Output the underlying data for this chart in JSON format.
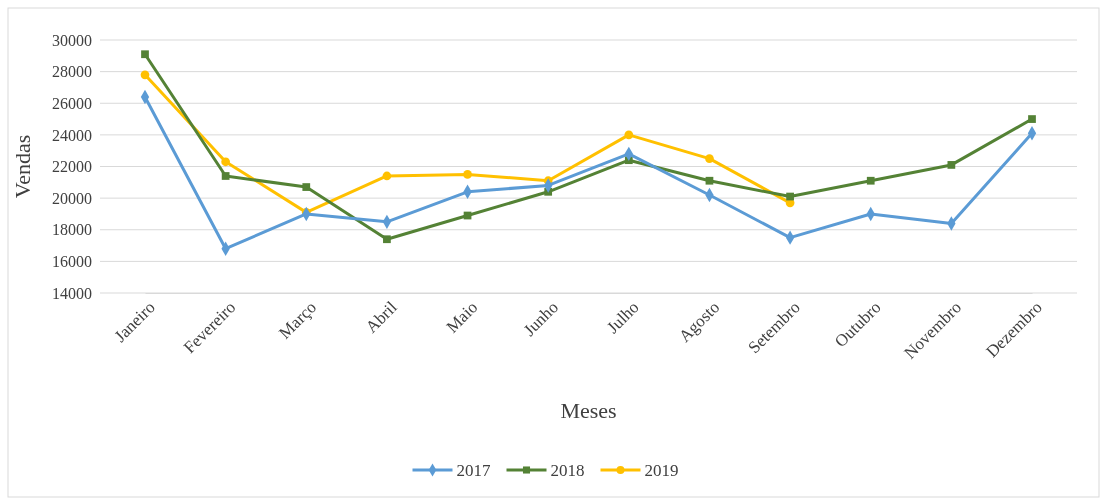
{
  "chart_data": {
    "type": "line",
    "xlabel": "Meses",
    "ylabel": "Vendas",
    "categories": [
      "Janeiro",
      "Fevereiro",
      "Março",
      "Abril",
      "Maio",
      "Junho",
      "Julho",
      "Agosto",
      "Setembro",
      "Outubro",
      "Novembro",
      "Dezembro"
    ],
    "series": [
      {
        "name": "2017",
        "color": "#5b9bd5",
        "marker": "diamond",
        "values": [
          26400,
          16800,
          19000,
          18500,
          20400,
          20800,
          22800,
          20200,
          17500,
          19000,
          18400,
          24100
        ]
      },
      {
        "name": "2018",
        "color": "#548235",
        "marker": "square",
        "values": [
          29100,
          21400,
          20700,
          17400,
          18900,
          20400,
          22400,
          21100,
          20100,
          21100,
          22100,
          25000
        ]
      },
      {
        "name": "2019",
        "color": "#ffc000",
        "marker": "circle",
        "values": [
          27800,
          22300,
          19100,
          21400,
          21500,
          21100,
          24000,
          22500,
          19700,
          null,
          null,
          null
        ]
      }
    ],
    "ylim": [
      14000,
      30000
    ],
    "yticks": [
      14000,
      16000,
      18000,
      20000,
      22000,
      24000,
      26000,
      28000,
      30000
    ],
    "grid": "y",
    "legend": "bottom"
  }
}
